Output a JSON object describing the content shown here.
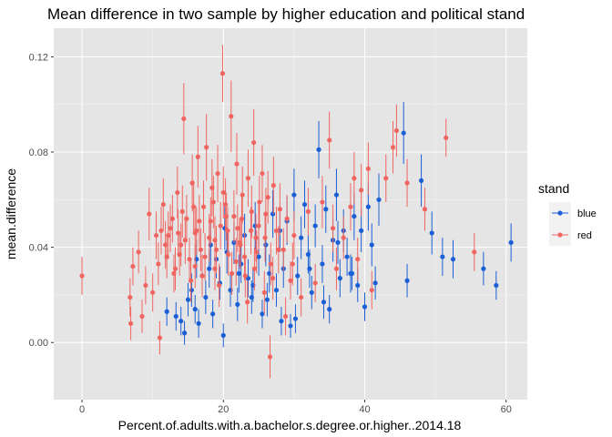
{
  "chart_data": {
    "type": "scatter",
    "title": "Mean difference in two sample by higher education and political stand",
    "xlabel": "Percent.of.adults.with.a.bachelor.s.degree.or.higher..2014.18",
    "ylabel": "mean.difference",
    "xlim": [
      -4,
      63
    ],
    "ylim": [
      -0.024,
      0.132
    ],
    "x_ticks": [
      0,
      20,
      40,
      60
    ],
    "x_tick_labels": [
      "0",
      "20",
      "40",
      "60"
    ],
    "y_ticks": [
      0.0,
      0.04,
      0.08,
      0.12
    ],
    "y_tick_labels": [
      "0.00",
      "0.04",
      "0.08",
      "0.12"
    ],
    "grid": true,
    "panel_background": "#e5e5e5",
    "legend": {
      "title": "stand",
      "position": "right"
    },
    "error_bars": true,
    "series": [
      {
        "name": "blue",
        "color": "#1a5fd6",
        "points": [
          [
            12,
            0.013,
            0.006
          ],
          [
            13.3,
            0.011,
            0.006
          ],
          [
            14,
            0.009,
            0.006
          ],
          [
            14.5,
            0.004,
            0.005
          ],
          [
            15,
            0.018,
            0.007
          ],
          [
            15.5,
            0.022,
            0.007
          ],
          [
            16,
            0.014,
            0.006
          ],
          [
            16.5,
            0.008,
            0.006
          ],
          [
            17,
            0.028,
            0.008
          ],
          [
            17.5,
            0.019,
            0.007
          ],
          [
            18,
            0.031,
            0.008
          ],
          [
            18.5,
            0.012,
            0.006
          ],
          [
            19,
            0.035,
            0.008
          ],
          [
            19.5,
            0.025,
            0.007
          ],
          [
            20,
            0.003,
            0.005
          ],
          [
            20.5,
            0.038,
            0.009
          ],
          [
            21,
            0.022,
            0.007
          ],
          [
            21.5,
            0.042,
            0.009
          ],
          [
            22,
            0.016,
            0.007
          ],
          [
            22.5,
            0.033,
            0.008
          ],
          [
            23,
            0.045,
            0.009
          ],
          [
            23.5,
            0.027,
            0.008
          ],
          [
            24,
            0.019,
            0.007
          ],
          [
            24.5,
            0.049,
            0.01
          ],
          [
            25,
            0.036,
            0.008
          ],
          [
            25.5,
            0.012,
            0.006
          ],
          [
            26,
            0.041,
            0.009
          ],
          [
            26.5,
            0.029,
            0.008
          ],
          [
            27,
            0.054,
            0.01
          ],
          [
            27.5,
            0.022,
            0.007
          ],
          [
            28,
            0.047,
            0.009
          ],
          [
            28.5,
            0.031,
            0.008
          ],
          [
            29,
            0.051,
            0.01
          ],
          [
            29.5,
            0.007,
            0.005
          ],
          [
            30,
            0.062,
            0.011
          ],
          [
            30.5,
            0.028,
            0.008
          ],
          [
            31,
            0.044,
            0.009
          ],
          [
            31.5,
            0.058,
            0.01
          ],
          [
            32,
            0.037,
            0.008
          ],
          [
            32.5,
            0.021,
            0.007
          ],
          [
            33,
            0.049,
            0.009
          ],
          [
            33.5,
            0.081,
            0.012
          ],
          [
            34,
            0.033,
            0.008
          ],
          [
            34.5,
            0.056,
            0.01
          ],
          [
            35,
            0.014,
            0.006
          ],
          [
            35.5,
            0.043,
            0.009
          ],
          [
            36,
            0.062,
            0.011
          ],
          [
            36.5,
            0.027,
            0.008
          ],
          [
            37,
            0.047,
            0.009
          ],
          [
            37.5,
            0.036,
            0.008
          ],
          [
            38,
            0.029,
            0.008
          ],
          [
            38.5,
            0.053,
            0.01
          ],
          [
            39,
            0.024,
            0.007
          ],
          [
            39.5,
            0.047,
            0.009
          ],
          [
            40,
            0.015,
            0.006
          ],
          [
            40.5,
            0.057,
            0.01
          ],
          [
            41,
            0.041,
            0.009
          ],
          [
            41.5,
            0.025,
            0.007
          ],
          [
            42,
            0.06,
            0.011
          ],
          [
            45.5,
            0.088,
            0.013
          ],
          [
            46,
            0.026,
            0.007
          ],
          [
            48,
            0.068,
            0.011
          ],
          [
            49.5,
            0.046,
            0.009
          ],
          [
            51,
            0.036,
            0.008
          ],
          [
            52.5,
            0.035,
            0.008
          ],
          [
            56.8,
            0.031,
            0.007
          ],
          [
            58.6,
            0.024,
            0.006
          ],
          [
            60.7,
            0.042,
            0.008
          ],
          [
            16.2,
            0.035,
            0.008
          ],
          [
            20.2,
            0.048,
            0.009
          ],
          [
            24.2,
            0.024,
            0.007
          ],
          [
            28.2,
            0.009,
            0.006
          ],
          [
            30.2,
            0.01,
            0.006
          ],
          [
            34.2,
            0.017,
            0.007
          ],
          [
            36.2,
            0.042,
            0.009
          ],
          [
            18.2,
            0.041,
            0.009
          ],
          [
            22.2,
            0.029,
            0.008
          ],
          [
            26.2,
            0.018,
            0.007
          ],
          [
            32.2,
            0.031,
            0.008
          ],
          [
            38.2,
            0.029,
            0.007
          ]
        ]
      },
      {
        "name": "red",
        "color": "#f06560",
        "points": [
          [
            0,
            0.028,
            0.008
          ],
          [
            6.8,
            0.019,
            0.008
          ],
          [
            6.9,
            0.008,
            0.007
          ],
          [
            7.2,
            0.032,
            0.008
          ],
          [
            8,
            0.038,
            0.009
          ],
          [
            8.5,
            0.011,
            0.007
          ],
          [
            9,
            0.024,
            0.008
          ],
          [
            9.5,
            0.054,
            0.011
          ],
          [
            10,
            0.021,
            0.008
          ],
          [
            10.5,
            0.045,
            0.01
          ],
          [
            11,
            0.002,
            0.007
          ],
          [
            11.5,
            0.058,
            0.011
          ],
          [
            12,
            0.036,
            0.009
          ],
          [
            12.5,
            0.048,
            0.01
          ],
          [
            13,
            0.029,
            0.008
          ],
          [
            13.5,
            0.063,
            0.011
          ],
          [
            14,
            0.041,
            0.009
          ],
          [
            14.4,
            0.094,
            0.015
          ],
          [
            14.8,
            0.052,
            0.01
          ],
          [
            15.2,
            0.035,
            0.009
          ],
          [
            15.6,
            0.067,
            0.012
          ],
          [
            16,
            0.046,
            0.01
          ],
          [
            16.4,
            0.078,
            0.013
          ],
          [
            16.8,
            0.039,
            0.009
          ],
          [
            17.2,
            0.057,
            0.011
          ],
          [
            17.6,
            0.082,
            0.014
          ],
          [
            18,
            0.044,
            0.01
          ],
          [
            18.4,
            0.065,
            0.012
          ],
          [
            18.8,
            0.031,
            0.009
          ],
          [
            19.2,
            0.071,
            0.012
          ],
          [
            19.6,
            0.049,
            0.01
          ],
          [
            19.9,
            0.113,
            0.012
          ],
          [
            20.3,
            0.058,
            0.011
          ],
          [
            20.7,
            0.037,
            0.009
          ],
          [
            21.1,
            0.095,
            0.015
          ],
          [
            21.5,
            0.053,
            0.011
          ],
          [
            21.9,
            0.075,
            0.013
          ],
          [
            22.3,
            0.042,
            0.01
          ],
          [
            22.7,
            0.062,
            0.012
          ],
          [
            23.1,
            0.028,
            0.009
          ],
          [
            23.5,
            0.069,
            0.012
          ],
          [
            23.9,
            0.047,
            0.01
          ],
          [
            24.3,
            0.084,
            0.014
          ],
          [
            24.7,
            0.038,
            0.009
          ],
          [
            25.1,
            0.059,
            0.011
          ],
          [
            25.5,
            0.071,
            0.012
          ],
          [
            25.9,
            0.044,
            0.01
          ],
          [
            26.3,
            0.061,
            0.011
          ],
          [
            26.7,
            0.033,
            0.009
          ],
          [
            27.1,
            0.066,
            0.012
          ],
          [
            27.5,
            0.047,
            0.01
          ],
          [
            28,
            0.056,
            0.011
          ],
          [
            28.5,
            0.039,
            0.009
          ],
          [
            29,
            0.052,
            0.01
          ],
          [
            29.5,
            0.026,
            0.008
          ],
          [
            30,
            0.045,
            0.01
          ],
          [
            31,
            0.019,
            0.008
          ],
          [
            32,
            0.055,
            0.01
          ],
          [
            33,
            0.025,
            0.008
          ],
          [
            34,
            0.059,
            0.011
          ],
          [
            35,
            0.085,
            0.012
          ],
          [
            35.5,
            0.048,
            0.01
          ],
          [
            36,
            0.031,
            0.009
          ],
          [
            37,
            0.044,
            0.009
          ],
          [
            38,
            0.057,
            0.01
          ],
          [
            38.5,
            0.069,
            0.011
          ],
          [
            39,
            0.035,
            0.009
          ],
          [
            39.5,
            0.064,
            0.011
          ],
          [
            40.5,
            0.073,
            0.011
          ],
          [
            41,
            0.022,
            0.008
          ],
          [
            43,
            0.069,
            0.01
          ],
          [
            44,
            0.082,
            0.011
          ],
          [
            44.5,
            0.089,
            0.011
          ],
          [
            46,
            0.067,
            0.01
          ],
          [
            48.5,
            0.056,
            0.009
          ],
          [
            51.5,
            0.086,
            0.008
          ],
          [
            55.5,
            0.038,
            0.008
          ],
          [
            12.2,
            0.045,
            0.01
          ],
          [
            13.2,
            0.031,
            0.009
          ],
          [
            14.2,
            0.055,
            0.011
          ],
          [
            15.4,
            0.026,
            0.009
          ],
          [
            16.6,
            0.051,
            0.011
          ],
          [
            17.4,
            0.036,
            0.01
          ],
          [
            18.6,
            0.059,
            0.011
          ],
          [
            19.4,
            0.024,
            0.009
          ],
          [
            20.6,
            0.047,
            0.01
          ],
          [
            21.8,
            0.034,
            0.01
          ],
          [
            22.6,
            0.052,
            0.011
          ],
          [
            23.4,
            0.017,
            0.009
          ],
          [
            24.6,
            0.044,
            0.01
          ],
          [
            25.8,
            0.021,
            0.009
          ],
          [
            26.6,
            -0.006,
            0.009
          ],
          [
            27.8,
            0.039,
            0.01
          ],
          [
            28.8,
            0.011,
            0.008
          ],
          [
            29.8,
            0.033,
            0.009
          ],
          [
            11.8,
            0.041,
            0.01
          ],
          [
            12.8,
            0.052,
            0.01
          ],
          [
            13.8,
            0.037,
            0.009
          ],
          [
            14.6,
            0.043,
            0.01
          ],
          [
            15.8,
            0.057,
            0.011
          ],
          [
            16.2,
            0.047,
            0.01
          ],
          [
            17.0,
            0.028,
            0.009
          ],
          [
            18.2,
            0.051,
            0.01
          ],
          [
            19.0,
            0.039,
            0.01
          ],
          [
            20.0,
            0.063,
            0.011
          ],
          [
            21.2,
            0.029,
            0.009
          ],
          [
            22.0,
            0.048,
            0.01
          ],
          [
            23.0,
            0.036,
            0.01
          ],
          [
            24.0,
            0.055,
            0.011
          ],
          [
            25.0,
            0.049,
            0.01
          ],
          [
            10.8,
            0.033,
            0.009
          ],
          [
            11.2,
            0.047,
            0.01
          ],
          [
            13.6,
            0.046,
            0.01
          ],
          [
            16.0,
            0.032,
            0.009
          ],
          [
            18.8,
            0.043,
            0.01
          ],
          [
            20.4,
            0.053,
            0.01
          ],
          [
            22.4,
            0.041,
            0.01
          ],
          [
            24.4,
            0.031,
            0.009
          ],
          [
            26.0,
            0.054,
            0.011
          ],
          [
            27.0,
            0.027,
            0.009
          ]
        ]
      }
    ]
  }
}
